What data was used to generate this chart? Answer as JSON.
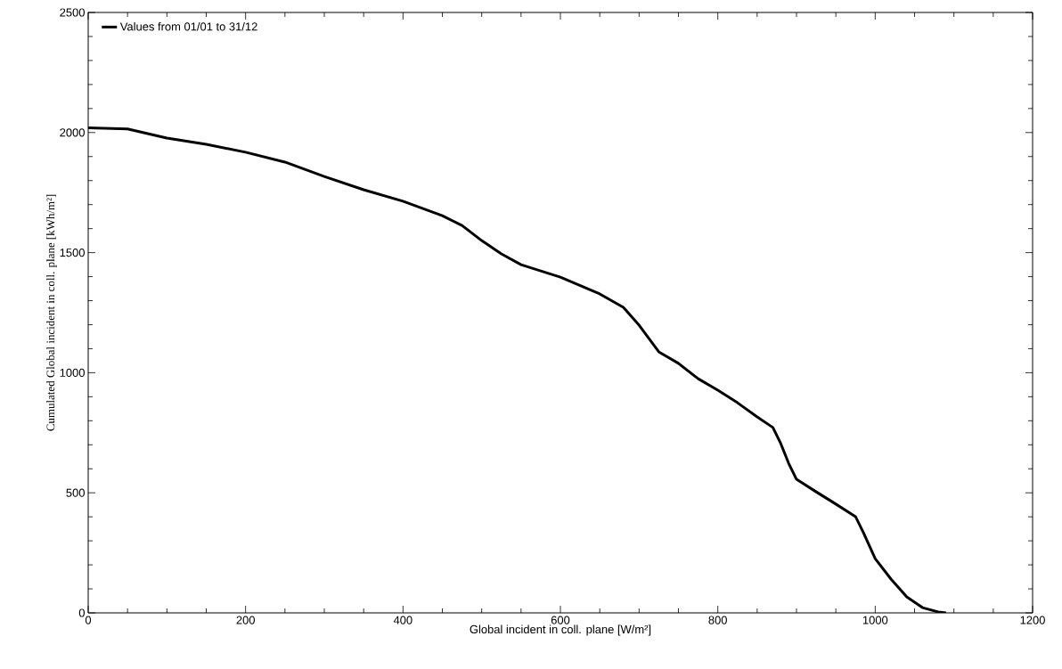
{
  "chart_data": {
    "type": "line",
    "xlabel": "Global incident in coll. plane [W/m²]",
    "ylabel": "Cumulated Global incident in coll. plane [kWh/m²]",
    "xlim": [
      0,
      1200
    ],
    "ylim": [
      0,
      2500
    ],
    "xticks": [
      0,
      200,
      400,
      600,
      800,
      1000,
      1200
    ],
    "yticks": [
      0,
      500,
      1000,
      1500,
      2000,
      2500
    ],
    "legend": "top left",
    "grid": false,
    "marker": "none",
    "line_style": "solid",
    "x": [
      0,
      50,
      100,
      150,
      200,
      250,
      300,
      350,
      400,
      450,
      475,
      500,
      525,
      550,
      600,
      650,
      680,
      700,
      725,
      750,
      775,
      800,
      825,
      850,
      870,
      880,
      890,
      900,
      925,
      950,
      975,
      985,
      1000,
      1020,
      1040,
      1060,
      1080,
      1090
    ],
    "series": [
      {
        "name": "Values from 01/01 to 31/12",
        "color": "#000000",
        "values": [
          2020,
          2015,
          1977,
          1951,
          1918,
          1877,
          1817,
          1762,
          1714,
          1654,
          1613,
          1550,
          1495,
          1450,
          1398,
          1328,
          1272,
          1198,
          1087,
          1039,
          975,
          927,
          875,
          816,
          772,
          705,
          623,
          556,
          504,
          453,
          401,
          334,
          226,
          141,
          67,
          22,
          4,
          0
        ]
      }
    ]
  }
}
